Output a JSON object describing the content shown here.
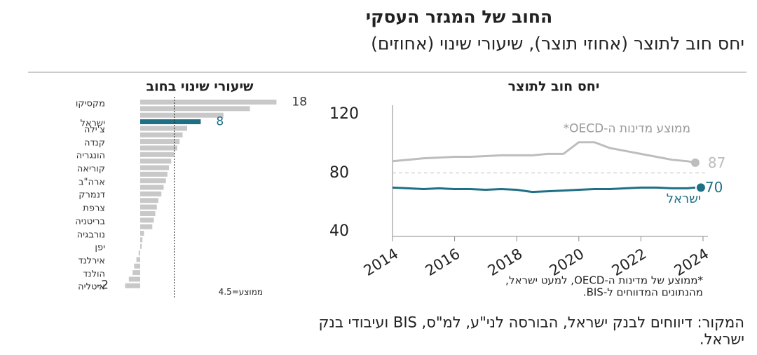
{
  "title": "החוב של המגזר העסקי",
  "subtitle": "יחס חוב לתוצר (אחוזי תוצר), שיעורי שינוי (אחוזים)",
  "source": [
    "המקור: דיווחים לבנק ישראל, הבורסה לני\"ע, למ\"ס, BIS ועיבודי בנק",
    "ישראל."
  ],
  "chart_data": [
    {
      "type": "hbar",
      "title": "שיעורי שינוי בחוב",
      "categories": [
        "מקסיקו",
        null,
        null,
        "ישראל",
        "צ'ילה",
        null,
        "קנדה",
        null,
        "הונגריה",
        null,
        "קוריאה",
        null,
        "ארה\"ב",
        null,
        "דנמרק",
        null,
        "צרפת",
        null,
        "בריטניה",
        null,
        "נורבגיה",
        null,
        "יפן",
        null,
        "אירלנד",
        null,
        "הולנד",
        null,
        "איטליה"
      ],
      "values": [
        18,
        14.5,
        11,
        8,
        6.2,
        5.6,
        5.2,
        4.9,
        4.5,
        4.1,
        3.8,
        3.6,
        3.4,
        3.1,
        2.8,
        2.4,
        2.2,
        2,
        1.8,
        1.6,
        0.5,
        0.3,
        0.2,
        -0.2,
        -0.5,
        -0.8,
        -1,
        -1.5,
        -2
      ],
      "labeled": [
        0,
        3,
        28
      ],
      "color": "#c8c8c8",
      "highlight": "ישראל",
      "highlight_color": "#1f6f86",
      "average": {
        "value": 4.5,
        "label": "ממוצע=4.5"
      }
    },
    {
      "type": "line",
      "title": "יחס חוב לתוצר",
      "x": [
        2014,
        2014.5,
        2015,
        2015.5,
        2016,
        2016.5,
        2017,
        2017.5,
        2018,
        2018.5,
        2019,
        2019.5,
        2020,
        2020.5,
        2021,
        2021.5,
        2022,
        2022.5,
        2023,
        2023.5,
        2023.75
      ],
      "series": [
        {
          "name": "ממוצע מדינות ה-OECD*",
          "color": "#bdbdbd",
          "values": [
            88,
            89,
            90,
            90.5,
            91,
            91,
            91.5,
            92,
            92,
            92,
            93,
            93,
            101,
            101,
            97,
            95,
            93,
            91,
            89,
            88,
            87
          ]
        },
        {
          "name": "ישראל",
          "color": "#1f6f86",
          "values": [
            70,
            69.5,
            69,
            69.5,
            69,
            69,
            68.5,
            69,
            68.5,
            67,
            67.5,
            68,
            68.5,
            69,
            69,
            69.5,
            70,
            70,
            69.5,
            69.5,
            70
          ]
        }
      ],
      "xlim": [
        2014,
        2024.2
      ],
      "xticks": [
        2014,
        2016,
        2018,
        2020,
        2022,
        2024
      ],
      "ylim": [
        40,
        120
      ],
      "yticks": [
        40,
        80,
        120
      ],
      "ref_line": 80,
      "footnote": [
        "*ממוצע של מדינות ה-OECD, למעט ישראל,",
        "מהנתונים המדווחים ל-BIS."
      ]
    }
  ]
}
